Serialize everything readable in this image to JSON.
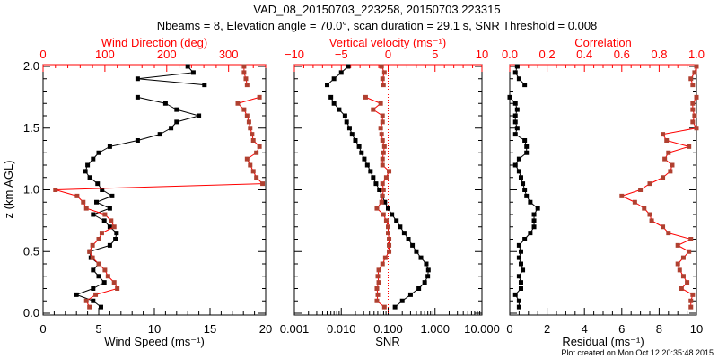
{
  "chart_data": [
    {
      "type": "scatter",
      "title": "VAD_08_20150703_223258, 20150703.223315",
      "subtitle": "Nbeams = 8, Elevation angle = 70.0°, scan duration = 29.1 s, SNR Threshold = 0.008",
      "ylabel": "z (km AGL)",
      "ylim": [
        0,
        2
      ],
      "yticks": [
        "0.0",
        "0.5",
        "1.0",
        "1.5",
        "2.0"
      ],
      "xlabel": "Wind Speed (ms⁻¹)",
      "xlim": [
        0,
        20
      ],
      "xticks": [
        "0",
        "5",
        "10",
        "15",
        "20"
      ],
      "x2label": "Wind Direction (deg)",
      "x2lim": [
        0,
        360
      ],
      "x2ticks": [
        "0",
        "100",
        "200",
        "300"
      ],
      "z": [
        0.05,
        0.1,
        0.15,
        0.2,
        0.25,
        0.3,
        0.35,
        0.4,
        0.45,
        0.5,
        0.55,
        0.6,
        0.65,
        0.7,
        0.75,
        0.8,
        0.85,
        0.9,
        0.95,
        1.0,
        1.05,
        1.1,
        1.15,
        1.2,
        1.25,
        1.3,
        1.35,
        1.4,
        1.45,
        1.5,
        1.55,
        1.6,
        1.65,
        1.7,
        1.75,
        1.85,
        1.9,
        1.95,
        2.0
      ],
      "series": [
        {
          "name": "Wind Speed",
          "axis": "bottom",
          "color": "#000000",
          "values": [
            5.2,
            4.5,
            3.0,
            4.5,
            5.5,
            5.0,
            4.5,
            5.0,
            4.3,
            4.2,
            6.0,
            6.5,
            6.6,
            6.0,
            5.5,
            4.5,
            6.0,
            4.8,
            6.2,
            5.3,
            4.9,
            4.2,
            3.8,
            4.0,
            4.5,
            5.0,
            6.0,
            8.5,
            10.5,
            11.5,
            12.0,
            14.0,
            12.0,
            11.0,
            8.5,
            14.5,
            8.5,
            13.5,
            13.0
          ]
        },
        {
          "name": "Wind Direction",
          "axis": "top",
          "color": "#b04030",
          "values": [
            75,
            70,
            85,
            120,
            115,
            105,
            100,
            90,
            80,
            75,
            80,
            90,
            95,
            115,
            110,
            100,
            70,
            65,
            55,
            20,
            355,
            345,
            340,
            335,
            330,
            345,
            350,
            340,
            338,
            335,
            333,
            330,
            325,
            315,
            350,
            330,
            328,
            325,
            325
          ]
        }
      ]
    },
    {
      "type": "scatter",
      "xlabel": "SNR",
      "xscale": "log",
      "xlim": [
        0.001,
        10
      ],
      "xticks": [
        "0.001",
        "0.010",
        "0.100",
        "1.000",
        "10.000"
      ],
      "x2label": "Vertical velocity (ms⁻¹)",
      "x2lim": [
        -10,
        10
      ],
      "x2ticks": [
        "−10",
        "−5",
        "0",
        "5",
        "10"
      ],
      "z": [
        0.05,
        0.1,
        0.15,
        0.2,
        0.25,
        0.3,
        0.35,
        0.4,
        0.45,
        0.5,
        0.55,
        0.6,
        0.65,
        0.7,
        0.75,
        0.8,
        0.85,
        0.9,
        0.95,
        1.0,
        1.05,
        1.1,
        1.15,
        1.2,
        1.25,
        1.3,
        1.35,
        1.4,
        1.45,
        1.5,
        1.55,
        1.6,
        1.65,
        1.7,
        1.75,
        1.85,
        1.9,
        1.95,
        2.0
      ],
      "series": [
        {
          "name": "SNR",
          "axis": "bottom",
          "color": "#000000",
          "values": [
            0.14,
            0.2,
            0.3,
            0.45,
            0.6,
            0.7,
            0.72,
            0.65,
            0.5,
            0.4,
            0.33,
            0.27,
            0.22,
            0.18,
            0.15,
            0.12,
            0.1,
            0.085,
            0.075,
            0.065,
            0.055,
            0.048,
            0.042,
            0.036,
            0.031,
            0.027,
            0.024,
            0.02,
            0.017,
            0.015,
            0.013,
            0.012,
            0.009,
            0.007,
            0.006,
            0.005,
            0.007,
            0.01,
            0.014
          ]
        },
        {
          "name": "Vertical velocity",
          "axis": "top",
          "color": "#b04030",
          "values": [
            -0.4,
            -1.2,
            -1.1,
            -1.2,
            -1.0,
            -1.1,
            -1.0,
            -0.6,
            -0.3,
            0.1,
            0.1,
            0.1,
            0.0,
            0.0,
            -0.2,
            -0.5,
            -1.2,
            -0.7,
            -0.6,
            -0.5,
            -0.6,
            -0.2,
            0.1,
            -0.6,
            -0.6,
            -0.5,
            -0.4,
            -0.6,
            -0.7,
            -0.8,
            -0.6,
            -0.6,
            -1.6,
            -0.8,
            -2.4,
            -0.5,
            -0.6,
            -0.4,
            -0.7
          ]
        }
      ]
    },
    {
      "type": "scatter",
      "xlabel": "Residual (ms⁻¹)",
      "xlim": [
        0,
        10
      ],
      "xticks": [
        "0",
        "2",
        "4",
        "6",
        "8",
        "10"
      ],
      "x2label": "Correlation",
      "x2lim": [
        0,
        1
      ],
      "x2ticks": [
        "0.0",
        "0.2",
        "0.4",
        "0.6",
        "0.8",
        "1.0"
      ],
      "z": [
        0.05,
        0.1,
        0.15,
        0.2,
        0.25,
        0.3,
        0.35,
        0.4,
        0.45,
        0.5,
        0.55,
        0.6,
        0.65,
        0.7,
        0.75,
        0.8,
        0.85,
        0.9,
        0.95,
        1.0,
        1.05,
        1.1,
        1.15,
        1.2,
        1.25,
        1.3,
        1.35,
        1.4,
        1.45,
        1.5,
        1.55,
        1.6,
        1.65,
        1.7,
        1.75,
        1.85,
        1.9,
        1.95,
        2.0
      ],
      "series": [
        {
          "name": "Residual",
          "axis": "bottom",
          "color": "#000000",
          "values": [
            0.5,
            0.5,
            0.3,
            0.6,
            0.6,
            0.5,
            0.7,
            0.6,
            0.5,
            0.6,
            0.5,
            0.8,
            1.1,
            1.3,
            1.3,
            1.3,
            1.5,
            1.1,
            0.9,
            0.8,
            0.7,
            0.6,
            0.5,
            0.3,
            0.5,
            0.9,
            0.9,
            0.8,
            0.3,
            0.4,
            0.3,
            0.3,
            0.4,
            0.3,
            0.0,
            0.8,
            0.5,
            0.3,
            0.4
          ]
        },
        {
          "name": "Correlation",
          "axis": "top",
          "color": "#b04030",
          "values": [
            0.97,
            0.97,
            0.98,
            0.92,
            0.95,
            0.93,
            0.91,
            0.9,
            0.93,
            0.96,
            0.9,
            0.97,
            0.85,
            0.82,
            0.76,
            0.75,
            0.72,
            0.67,
            0.6,
            0.7,
            0.75,
            0.82,
            0.86,
            0.87,
            0.83,
            0.85,
            0.96,
            0.84,
            0.82,
            1.0,
            0.98,
            0.99,
            0.98,
            0.98,
            1.0,
            0.98,
            0.97,
            0.99,
            1.0
          ]
        }
      ]
    }
  ],
  "footer": "Plot created on Mon Oct 12 20:35:48 2015"
}
